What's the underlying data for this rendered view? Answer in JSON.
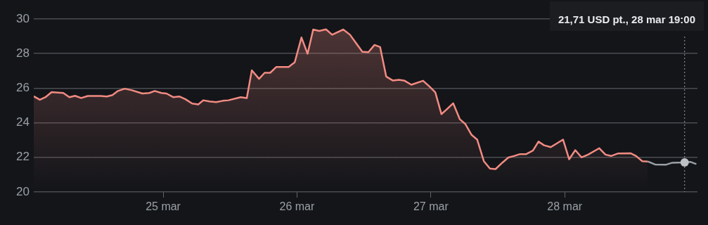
{
  "chart_data": {
    "type": "area",
    "xlim": [
      "--03-24T00:48",
      "--03-28T23:48"
    ],
    "xticks": [
      {
        "value": "--03-25",
        "label": "25 mar"
      },
      {
        "value": "--03-26",
        "label": "26 mar"
      },
      {
        "value": "--03-27",
        "label": "27 mar"
      },
      {
        "value": "--03-28",
        "label": "28 mar"
      }
    ],
    "ylim": [
      20,
      30
    ],
    "yticks": [
      20,
      22,
      24,
      26,
      28,
      30
    ],
    "grid": "y",
    "legend": false,
    "marker": "none",
    "series": [
      {
        "type": "area",
        "color": "#f28b82",
        "x": [
          "--03-24T00:48",
          "--03-24T01:54",
          "--03-24T02:54",
          "--03-24T04:00",
          "--03-24T06:06",
          "--03-24T07:12",
          "--03-24T08:12",
          "--03-24T09:18",
          "--03-24T10:30",
          "--03-24T12:48",
          "--03-24T13:54",
          "--03-24T14:54",
          "--03-24T15:54",
          "--03-24T17:06",
          "--03-24T18:18",
          "--03-24T20:18",
          "--03-24T21:30",
          "--03-24T22:30",
          "--03-24T23:42",
          "--03-25T00:36",
          "--03-25T01:48",
          "--03-25T02:54",
          "--03-25T04:00",
          "--03-25T05:12",
          "--03-25T06:18",
          "--03-25T07:12",
          "--03-25T08:18",
          "--03-25T09:30",
          "--03-25T10:42",
          "--03-25T11:42",
          "--03-25T13:54",
          "--03-25T15:00",
          "--03-25T15:54",
          "--03-25T17:12",
          "--03-25T18:12",
          "--03-25T19:12",
          "--03-25T20:18",
          "--03-25T22:30",
          "--03-25T23:36",
          "--03-26T00:48",
          "--03-26T01:54",
          "--03-26T02:54",
          "--03-26T04:00",
          "--03-26T05:12",
          "--03-26T06:18",
          "--03-26T08:18",
          "--03-26T09:30",
          "--03-26T11:42",
          "--03-26T12:48",
          "--03-26T13:54",
          "--03-26T14:54",
          "--03-26T16:00",
          "--03-26T17:12",
          "--03-26T18:18",
          "--03-26T19:18",
          "--03-26T20:30",
          "--03-26T22:36",
          "--03-26T23:42",
          "--03-27T00:48",
          "--03-27T01:54",
          "--03-27T02:54",
          "--03-27T04:00",
          "--03-27T05:12",
          "--03-27T06:12",
          "--03-27T07:18",
          "--03-27T08:18",
          "--03-27T09:30",
          "--03-27T10:36",
          "--03-27T11:36",
          "--03-27T12:48",
          "--03-27T13:54",
          "--03-27T14:54",
          "--03-27T16:00",
          "--03-27T17:06",
          "--03-27T18:18",
          "--03-27T19:18",
          "--03-27T20:18",
          "--03-27T21:30",
          "--03-27T23:42",
          "--03-28T00:48",
          "--03-28T01:54",
          "--03-28T03:00",
          "--03-28T04:12",
          "--03-28T06:12",
          "--03-28T07:18",
          "--03-28T08:18",
          "--03-28T09:36",
          "--03-28T11:48",
          "--03-28T12:48",
          "--03-28T13:54",
          "--03-28T14:54"
        ],
        "values": [
          25.53,
          25.33,
          25.48,
          25.77,
          25.72,
          25.48,
          25.56,
          25.43,
          25.55,
          25.55,
          25.52,
          25.6,
          25.84,
          25.97,
          25.89,
          25.69,
          25.72,
          25.84,
          25.72,
          25.69,
          25.48,
          25.52,
          25.36,
          25.11,
          25.06,
          25.3,
          25.23,
          25.19,
          25.27,
          25.3,
          25.48,
          25.43,
          27.03,
          26.54,
          26.89,
          26.89,
          27.23,
          27.23,
          27.5,
          28.93,
          27.99,
          29.39,
          29.31,
          29.4,
          29.09,
          29.39,
          29.09,
          28.11,
          28.08,
          28.5,
          28.38,
          26.67,
          26.44,
          26.48,
          26.43,
          26.2,
          26.43,
          26.11,
          25.76,
          24.5,
          24.79,
          25.13,
          24.2,
          23.92,
          23.3,
          23.03,
          21.78,
          21.35,
          21.32,
          21.69,
          21.99,
          22.08,
          22.19,
          22.19,
          22.39,
          22.91,
          22.7,
          22.59,
          23.03,
          21.89,
          22.42,
          22.0,
          22.16,
          22.53,
          22.16,
          22.08,
          22.23,
          22.24,
          22.08,
          21.78,
          21.76
        ]
      },
      {
        "type": "line",
        "color": "#9aa0a6",
        "x": [
          "--03-28T14:54",
          "--03-28T16:12",
          "--03-28T18:12",
          "--03-28T19:18",
          "--03-28T21:30",
          "--03-28T22:30",
          "--03-28T23:36"
        ],
        "values": [
          21.76,
          21.59,
          21.58,
          21.69,
          21.71,
          21.74,
          21.61
        ]
      }
    ],
    "ref_lines": [
      {
        "axis": "x",
        "value": "--03-28T21:30",
        "color": "#9aa0a6",
        "line_style": "dotted"
      }
    ],
    "annotations": [
      "21,71 USD pt., 28 mar 19:00"
    ]
  }
}
